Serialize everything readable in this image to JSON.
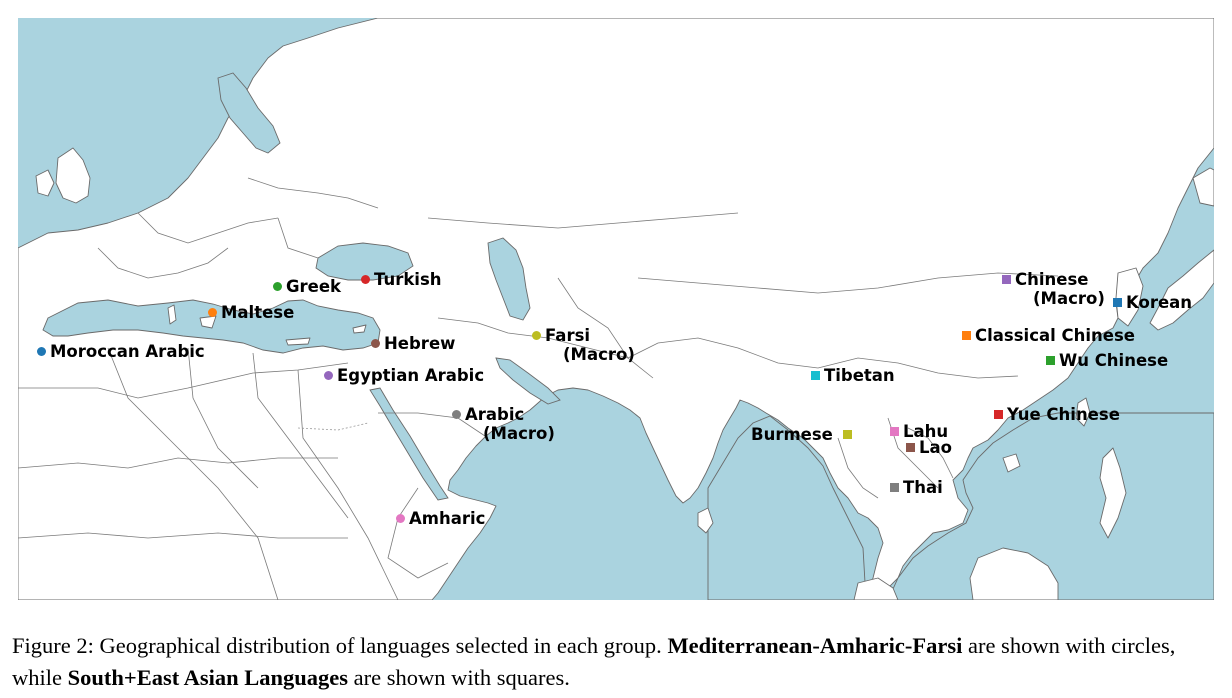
{
  "caption": {
    "prefix": "Figure 2: Geographical distribution of languages selected in each group. ",
    "group1": "Mediterranean-Amharic-Farsi",
    "middle": " are shown with circles, while ",
    "group2": "South+East Asian Languages",
    "suffix": " are shown with squares."
  },
  "legend_markers": {
    "group1_shape": "circle",
    "group2_shape": "square"
  },
  "languages": [
    {
      "id": "moroccan-arabic",
      "label": "Moroccan Arabic",
      "line2": "",
      "shape": "circle",
      "color": "#1f77b4"
    },
    {
      "id": "maltese",
      "label": "Maltese",
      "line2": "",
      "shape": "circle",
      "color": "#ff7f0e"
    },
    {
      "id": "greek",
      "label": "Greek",
      "line2": "",
      "shape": "circle",
      "color": "#2ca02c"
    },
    {
      "id": "turkish",
      "label": "Turkish",
      "line2": "",
      "shape": "circle",
      "color": "#d62728"
    },
    {
      "id": "egyptian-arabic",
      "label": "Egyptian Arabic",
      "line2": "",
      "shape": "circle",
      "color": "#9467bd"
    },
    {
      "id": "hebrew",
      "label": "Hebrew",
      "line2": "",
      "shape": "circle",
      "color": "#8c564b"
    },
    {
      "id": "amharic",
      "label": "Amharic",
      "line2": "",
      "shape": "circle",
      "color": "#e377c2"
    },
    {
      "id": "arabic-macro",
      "label": "Arabic",
      "line2": "(Macro)",
      "shape": "circle",
      "color": "#7f7f7f"
    },
    {
      "id": "farsi-macro",
      "label": "Farsi",
      "line2": "(Macro)",
      "shape": "circle",
      "color": "#bcbd22"
    },
    {
      "id": "tibetan",
      "label": "Tibetan",
      "line2": "",
      "shape": "square",
      "color": "#17becf"
    },
    {
      "id": "burmese",
      "label": "Burmese",
      "line2": "",
      "shape": "square",
      "color": "#bcbd22"
    },
    {
      "id": "lahu",
      "label": "Lahu",
      "line2": "",
      "shape": "square",
      "color": "#e377c2"
    },
    {
      "id": "lao",
      "label": "Lao",
      "line2": "",
      "shape": "square",
      "color": "#8c564b"
    },
    {
      "id": "thai",
      "label": "Thai",
      "line2": "",
      "shape": "square",
      "color": "#7f7f7f"
    },
    {
      "id": "yue-chinese",
      "label": "Yue Chinese",
      "line2": "",
      "shape": "square",
      "color": "#d62728"
    },
    {
      "id": "wu-chinese",
      "label": "Wu Chinese",
      "line2": "",
      "shape": "square",
      "color": "#2ca02c"
    },
    {
      "id": "classical-chinese",
      "label": "Classical Chinese",
      "line2": "",
      "shape": "square",
      "color": "#ff7f0e"
    },
    {
      "id": "chinese-macro",
      "label": "Chinese",
      "line2": "(Macro)",
      "shape": "square",
      "color": "#9467bd"
    },
    {
      "id": "korean",
      "label": "Korean",
      "line2": "",
      "shape": "square",
      "color": "#1f77b4"
    }
  ],
  "colors": {
    "ocean": "#aad3df",
    "land": "#ffffff",
    "border": "#7a7a7a"
  }
}
